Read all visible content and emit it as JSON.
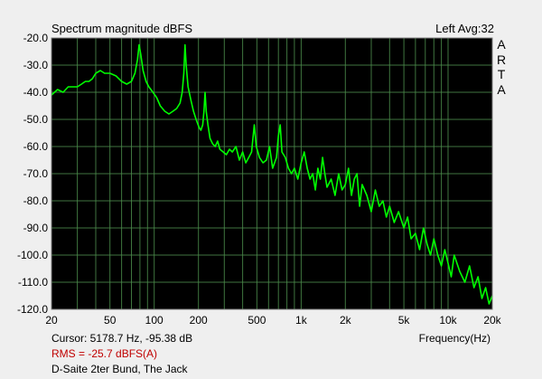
{
  "chart_data": {
    "type": "line",
    "title": "Spectrum magnitude dBFS",
    "channel_label": "Left  Avg:32",
    "brand_letters": [
      "A",
      "R",
      "T",
      "A"
    ],
    "xlabel": "Frequency(Hz)",
    "ylabel": "",
    "xscale": "log",
    "xlim": [
      20,
      20000
    ],
    "ylim": [
      -120,
      -20
    ],
    "x_ticks": [
      {
        "v": 20,
        "label": "20"
      },
      {
        "v": 50,
        "label": "50"
      },
      {
        "v": 100,
        "label": "100"
      },
      {
        "v": 200,
        "label": "200"
      },
      {
        "v": 500,
        "label": "500"
      },
      {
        "v": 1000,
        "label": "1k"
      },
      {
        "v": 2000,
        "label": "2k"
      },
      {
        "v": 5000,
        "label": "5k"
      },
      {
        "v": 10000,
        "label": "10k"
      },
      {
        "v": 20000,
        "label": "20k"
      }
    ],
    "y_ticks": [
      {
        "v": -20,
        "label": "-20.0"
      },
      {
        "v": -30,
        "label": "-30.0"
      },
      {
        "v": -40,
        "label": "-40.0"
      },
      {
        "v": -50,
        "label": "-50.0"
      },
      {
        "v": -60,
        "label": "-60.0"
      },
      {
        "v": -70,
        "label": "-70.0"
      },
      {
        "v": -80,
        "label": "-80.0"
      },
      {
        "v": -90,
        "label": "-90.0"
      },
      {
        "v": -100,
        "label": "-100.0"
      },
      {
        "v": -110,
        "label": "-110.0"
      },
      {
        "v": -120,
        "label": "-120.0"
      }
    ],
    "grid": true,
    "background": "#000000",
    "grid_color": "#4a8a4a",
    "series": [
      {
        "color": "#00ff00",
        "points": [
          [
            20,
            -41
          ],
          [
            22,
            -39
          ],
          [
            24,
            -40
          ],
          [
            26,
            -38
          ],
          [
            28,
            -38
          ],
          [
            30,
            -38
          ],
          [
            32,
            -37
          ],
          [
            34,
            -36
          ],
          [
            36,
            -36
          ],
          [
            38,
            -35
          ],
          [
            40,
            -33
          ],
          [
            43,
            -32
          ],
          [
            46,
            -33
          ],
          [
            50,
            -33
          ],
          [
            55,
            -34
          ],
          [
            60,
            -36
          ],
          [
            65,
            -37
          ],
          [
            70,
            -36
          ],
          [
            74,
            -33
          ],
          [
            77,
            -28
          ],
          [
            79,
            -22.5
          ],
          [
            81,
            -26
          ],
          [
            84,
            -32
          ],
          [
            88,
            -36
          ],
          [
            92,
            -38
          ],
          [
            98,
            -40
          ],
          [
            104,
            -42
          ],
          [
            110,
            -45
          ],
          [
            118,
            -47
          ],
          [
            126,
            -48
          ],
          [
            134,
            -47
          ],
          [
            142,
            -46
          ],
          [
            150,
            -44
          ],
          [
            155,
            -40
          ],
          [
            159,
            -33
          ],
          [
            162,
            -22.5
          ],
          [
            165,
            -30
          ],
          [
            170,
            -38
          ],
          [
            178,
            -43
          ],
          [
            185,
            -47
          ],
          [
            193,
            -50
          ],
          [
            202,
            -53
          ],
          [
            208,
            -54
          ],
          [
            214,
            -52
          ],
          [
            218,
            -47
          ],
          [
            222,
            -40
          ],
          [
            226,
            -47
          ],
          [
            232,
            -52
          ],
          [
            240,
            -57
          ],
          [
            250,
            -59
          ],
          [
            260,
            -60
          ],
          [
            270,
            -58
          ],
          [
            280,
            -61
          ],
          [
            295,
            -62
          ],
          [
            310,
            -63
          ],
          [
            325,
            -61
          ],
          [
            340,
            -62
          ],
          [
            360,
            -60
          ],
          [
            380,
            -65
          ],
          [
            400,
            -62
          ],
          [
            420,
            -66
          ],
          [
            440,
            -64
          ],
          [
            460,
            -62
          ],
          [
            480,
            -52
          ],
          [
            495,
            -60
          ],
          [
            520,
            -64
          ],
          [
            550,
            -66
          ],
          [
            580,
            -65
          ],
          [
            610,
            -60
          ],
          [
            640,
            -68
          ],
          [
            680,
            -64
          ],
          [
            700,
            -56
          ],
          [
            720,
            -52
          ],
          [
            740,
            -62
          ],
          [
            780,
            -64
          ],
          [
            820,
            -68
          ],
          [
            860,
            -70
          ],
          [
            900,
            -68
          ],
          [
            950,
            -72
          ],
          [
            1000,
            -66
          ],
          [
            1050,
            -62
          ],
          [
            1100,
            -68
          ],
          [
            1150,
            -72
          ],
          [
            1200,
            -70
          ],
          [
            1250,
            -76
          ],
          [
            1300,
            -68
          ],
          [
            1350,
            -72
          ],
          [
            1400,
            -64
          ],
          [
            1450,
            -70
          ],
          [
            1500,
            -75
          ],
          [
            1600,
            -72
          ],
          [
            1700,
            -78
          ],
          [
            1800,
            -70
          ],
          [
            1900,
            -76
          ],
          [
            2000,
            -74
          ],
          [
            2100,
            -68
          ],
          [
            2200,
            -78
          ],
          [
            2300,
            -72
          ],
          [
            2400,
            -70
          ],
          [
            2500,
            -82
          ],
          [
            2600,
            -74
          ],
          [
            2800,
            -78
          ],
          [
            3000,
            -84
          ],
          [
            3200,
            -76
          ],
          [
            3400,
            -82
          ],
          [
            3600,
            -80
          ],
          [
            3800,
            -86
          ],
          [
            4000,
            -82
          ],
          [
            4300,
            -88
          ],
          [
            4600,
            -84
          ],
          [
            5000,
            -90
          ],
          [
            5300,
            -86
          ],
          [
            5600,
            -94
          ],
          [
            6000,
            -92
          ],
          [
            6400,
            -98
          ],
          [
            6800,
            -90
          ],
          [
            7200,
            -96
          ],
          [
            7600,
            -100
          ],
          [
            8000,
            -94
          ],
          [
            8500,
            -100
          ],
          [
            9000,
            -104
          ],
          [
            9500,
            -98
          ],
          [
            10000,
            -103
          ],
          [
            10500,
            -108
          ],
          [
            11000,
            -100
          ],
          [
            12000,
            -106
          ],
          [
            13000,
            -110
          ],
          [
            14000,
            -104
          ],
          [
            15000,
            -112
          ],
          [
            16000,
            -108
          ],
          [
            17000,
            -116
          ],
          [
            18000,
            -112
          ],
          [
            19000,
            -118
          ],
          [
            20000,
            -115
          ]
        ]
      }
    ]
  },
  "footer": {
    "cursor": "Cursor:  5178.7 Hz, -95.38 dB",
    "rms": "RMS =  -25.7 dBFS(A)",
    "note": "D-Saite 2ter Bund, The Jack"
  }
}
